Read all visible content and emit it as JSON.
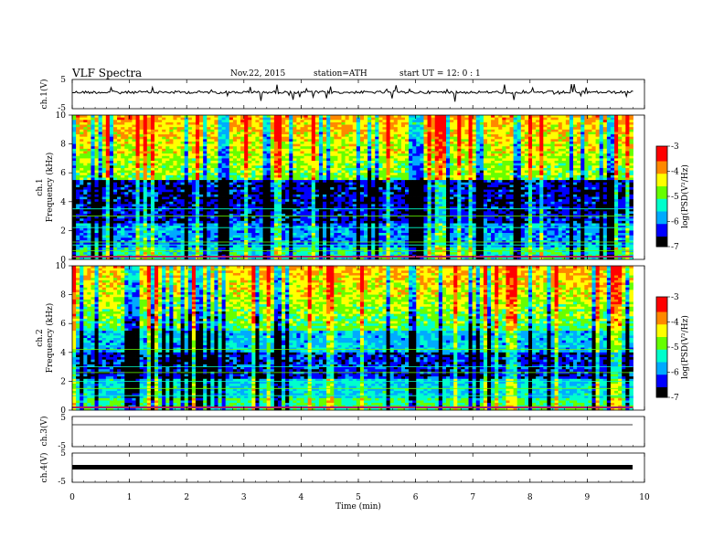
{
  "header": {
    "title": "VLF  Spectra",
    "date": "Nov.22, 2015",
    "station": "station=ATH",
    "start": "start  UT  =   12: 0  : 1"
  },
  "chart_data": [
    {
      "type": "line",
      "panel": "ch1-waveform",
      "ylabel": "ch.1(V)",
      "yticks": [
        "5",
        "-5"
      ],
      "ylim": [
        -5,
        5
      ],
      "description_values": {
        "baseline": 0.3,
        "spread": 0.5
      }
    },
    {
      "type": "heatmap",
      "panel": "ch1-spectrogram",
      "ylabel": "ch.1\nFrequency (kHz)",
      "ylabel_top": "ch.1",
      "ylabel_bottom": "Frequency (kHz)",
      "yticks": [
        "0",
        "2",
        "4",
        "6",
        "8",
        "10"
      ],
      "ylim": [
        0,
        10
      ],
      "colorbar": {
        "label": "log(PSD(V²/Hz)",
        "ticks": [
          "-3",
          "-4",
          "-5",
          "-6",
          "-7"
        ],
        "range": [
          -7,
          -3
        ]
      }
    },
    {
      "type": "heatmap",
      "panel": "ch2-spectrogram",
      "ylabel_top": "ch.2",
      "ylabel_bottom": "Frequency (kHz)",
      "yticks": [
        "0",
        "2",
        "4",
        "6",
        "8",
        "10"
      ],
      "ylim": [
        0,
        10
      ],
      "colorbar": {
        "label": "log(PSD(V²/Hz)",
        "ticks": [
          "-3",
          "-4",
          "-5",
          "-6",
          "-7"
        ],
        "range": [
          -7,
          -3
        ]
      }
    },
    {
      "type": "line",
      "panel": "ch3-waveform",
      "ylabel": "ch.3(V)",
      "yticks": [
        "5",
        "-5"
      ],
      "ylim": [
        -5,
        5
      ]
    },
    {
      "type": "line",
      "panel": "ch4-waveform",
      "ylabel": "ch.4(V)",
      "yticks": [
        "5",
        "-5"
      ],
      "ylim": [
        -5,
        5
      ]
    }
  ],
  "xaxis": {
    "xlabel": "Time  (min)",
    "ticks": [
      "0",
      "1",
      "2",
      "3",
      "4",
      "5",
      "6",
      "7",
      "8",
      "9",
      "10"
    ],
    "xlim": [
      0,
      10
    ],
    "data_end": 9.8
  },
  "colors": {
    "scale": [
      "#000000",
      "#0000ff",
      "#00aaff",
      "#00ffcc",
      "#66ff00",
      "#ffff00",
      "#ff8800",
      "#ff0000",
      "#ffffff"
    ]
  }
}
